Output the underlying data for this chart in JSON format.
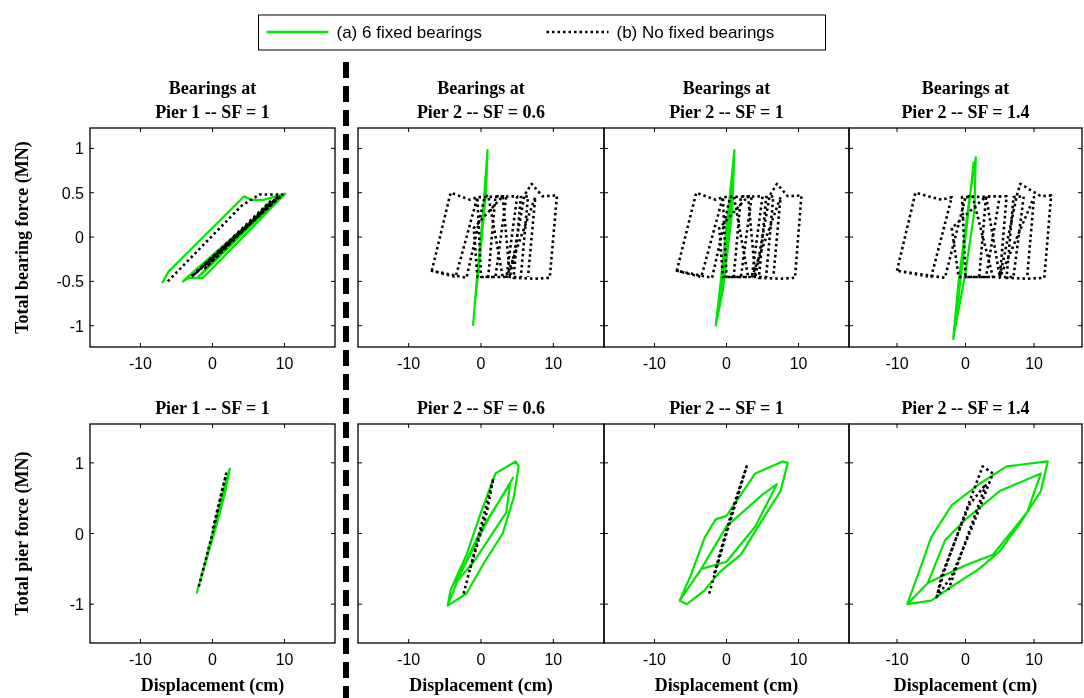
{
  "chart_data": [
    {
      "type": "line",
      "title": "Bearings at\nPier 1 -- SF = 1",
      "ylabel": "Total bearing force (MN)",
      "xlim": [
        -17,
        17
      ],
      "xticks": [
        -10,
        0,
        10
      ],
      "ylim": [
        -1.24,
        1.23
      ],
      "yticks": [
        -1,
        -0.5,
        0,
        0.5,
        1
      ],
      "grid": false,
      "legend": "top",
      "series": [
        {
          "name": "(a) 6 fixed bearings",
          "color": "#00e600",
          "line_style": "solid",
          "x": [
            -7,
            -6.1,
            4.4,
            5.3,
            7.1,
            10.1,
            -1.3,
            -3.2,
            -4.1,
            -2.5,
            9.5,
            0,
            -2,
            8,
            -1.5
          ],
          "values": [
            -0.52,
            -0.39,
            0.46,
            0.42,
            0.42,
            0.49,
            -0.46,
            -0.46,
            -0.5,
            -0.38,
            0.47,
            -0.3,
            -0.45,
            0.4,
            -0.42
          ]
        },
        {
          "name": "(b) No fixed bearings",
          "color": "#000000",
          "line_style": "dotted",
          "x": [
            -6.2,
            4,
            6.5,
            9.7,
            -2.2,
            -3,
            9,
            -1,
            8,
            -2.5,
            9.6
          ],
          "values": [
            -0.5,
            0.35,
            0.48,
            0.48,
            -0.4,
            -0.45,
            0.45,
            -0.35,
            0.4,
            -0.42,
            0.47
          ]
        }
      ]
    },
    {
      "type": "line",
      "title": "Bearings at\nPier 2 -- SF = 0.6",
      "xlim": [
        -17,
        17
      ],
      "xticks": [
        -10,
        0,
        10
      ],
      "ylim": [
        -1.24,
        1.23
      ],
      "yticks": [
        -1,
        -0.5,
        0,
        0.5,
        1
      ],
      "grid": false,
      "tick_labels": "x",
      "series": [
        {
          "color": "#00e600",
          "line_style": "solid",
          "x": [
            -1.1,
            -0.6,
            0.2,
            0.9,
            0.7,
            0,
            -0.9
          ],
          "values": [
            -1.0,
            -0.5,
            0.2,
            0.98,
            0.5,
            -0.1,
            -0.8
          ]
        },
        {
          "color": "#000000",
          "line_style": "dotted",
          "x": [
            -6.8,
            -4.2,
            -1.5,
            -0.5,
            -3.5,
            -6.8,
            -2,
            0.5,
            1,
            3,
            -0.5,
            -1,
            3,
            4,
            6,
            7,
            8.5,
            10.5,
            9.5,
            7.5,
            4.5,
            5.5,
            6.5,
            5.5,
            1,
            2,
            3.5,
            2,
            0,
            -0.5,
            5,
            3.5,
            7.5,
            6.5
          ],
          "values": [
            -0.38,
            0.5,
            0.42,
            0.45,
            -0.45,
            -0.38,
            -0.46,
            0.45,
            0.47,
            -0.45,
            -0.45,
            0.1,
            0.46,
            -0.45,
            0.47,
            0.6,
            0.46,
            0.47,
            -0.46,
            -0.47,
            -0.46,
            0.45,
            0.46,
            -0.45,
            -0.45,
            0.46,
            0.46,
            -0.45,
            -0.45,
            0.45,
            0.46,
            -0.46,
            0.45,
            -0.45
          ]
        }
      ]
    },
    {
      "type": "line",
      "title": "Bearings at\nPier 2 -- SF = 1",
      "xlim": [
        -17,
        17
      ],
      "xticks": [
        -10,
        0,
        10
      ],
      "ylim": [
        -1.24,
        1.23
      ],
      "yticks": [
        -1,
        -0.5,
        0,
        0.5,
        1
      ],
      "grid": false,
      "tick_labels": "x",
      "series": [
        {
          "color": "#00e600",
          "line_style": "solid",
          "x": [
            -1.5,
            -0.8,
            0.5,
            1.1,
            0.8,
            -0.5,
            -1.5,
            -0.9,
            0.4,
            1.0
          ],
          "values": [
            -1.0,
            -0.5,
            0.5,
            0.98,
            0.3,
            -0.6,
            -1.0,
            -0.7,
            0.2,
            0.9
          ]
        },
        {
          "color": "#000000",
          "line_style": "dotted",
          "x": [
            -6.9,
            -4.2,
            -1.5,
            -0.5,
            -3.5,
            -6.9,
            -2,
            0.5,
            1,
            3,
            -0.5,
            -1,
            3,
            4,
            6,
            7,
            8.5,
            10.4,
            9.5,
            7.5,
            4.5,
            5.5,
            6.5,
            5.5,
            1,
            2,
            3.5,
            2,
            0,
            -0.5,
            5,
            3.5,
            7.5,
            6.5
          ],
          "values": [
            -0.38,
            0.5,
            0.42,
            0.45,
            -0.45,
            -0.38,
            -0.46,
            0.45,
            0.47,
            -0.45,
            -0.45,
            0.1,
            0.46,
            -0.45,
            0.47,
            0.6,
            0.46,
            0.47,
            -0.46,
            -0.47,
            -0.46,
            0.45,
            0.46,
            -0.45,
            -0.45,
            0.46,
            0.46,
            -0.45,
            -0.45,
            0.45,
            0.46,
            -0.46,
            0.45,
            -0.45
          ]
        }
      ]
    },
    {
      "type": "line",
      "title": "Bearings at\nPier 2 -- SF = 1.4",
      "xlim": [
        -17,
        17
      ],
      "xticks": [
        -10,
        0,
        10
      ],
      "ylim": [
        -1.24,
        1.23
      ],
      "yticks": [
        -1,
        -0.5,
        0,
        0.5,
        1
      ],
      "grid": false,
      "tick_labels": "x",
      "series": [
        {
          "color": "#00e600",
          "line_style": "solid",
          "x": [
            -1.8,
            -1,
            0.5,
            1.5,
            1.3,
            0,
            -1.8,
            -1.2,
            0.3,
            1.2
          ],
          "values": [
            -1.15,
            -0.5,
            0.4,
            0.9,
            0.3,
            -0.4,
            -1.15,
            -0.8,
            0.2,
            0.85
          ]
        },
        {
          "color": "#000000",
          "line_style": "dotted",
          "x": [
            -10,
            -7.3,
            -3.5,
            -2,
            -5,
            -10,
            -3,
            0,
            1,
            4,
            -1,
            -2,
            3,
            5,
            7.5,
            8,
            11,
            12.5,
            11.5,
            9,
            6,
            7,
            8.5,
            7,
            2,
            3,
            5,
            3,
            0,
            -0.5,
            6,
            5,
            10,
            9
          ],
          "values": [
            -0.38,
            0.5,
            0.42,
            0.45,
            -0.45,
            -0.38,
            -0.46,
            0.45,
            0.47,
            -0.45,
            -0.45,
            0.1,
            0.46,
            -0.45,
            0.47,
            0.6,
            0.46,
            0.47,
            -0.46,
            -0.47,
            -0.46,
            0.45,
            0.46,
            -0.45,
            -0.45,
            0.46,
            0.46,
            -0.45,
            -0.45,
            0.45,
            0.46,
            -0.46,
            0.45,
            -0.45
          ]
        }
      ]
    },
    {
      "type": "line",
      "title": "Pier 1 -- SF = 1",
      "xlabel": "Displacement (cm)",
      "ylabel": "Total pier force (MN)",
      "xlim": [
        -17,
        17
      ],
      "xticks": [
        -10,
        0,
        10
      ],
      "ylim": [
        -1.55,
        1.55
      ],
      "yticks": [
        -1,
        0,
        1
      ],
      "grid": false,
      "series": [
        {
          "color": "#00e600",
          "line_style": "solid",
          "x": [
            -2.2,
            -1,
            0,
            1.5,
            2.4,
            1.8,
            0.5,
            -1.5
          ],
          "values": [
            -0.85,
            -0.4,
            0,
            0.6,
            0.92,
            0.6,
            0.1,
            -0.6
          ]
        },
        {
          "color": "#000000",
          "line_style": "dotted",
          "x": [
            -1.9,
            0,
            1.9,
            0
          ],
          "values": [
            -0.75,
            0,
            0.85,
            0.05
          ]
        }
      ]
    },
    {
      "type": "line",
      "title": "Pier 2 -- SF = 0.6",
      "xlabel": "Displacement (cm)",
      "xlim": [
        -17,
        17
      ],
      "xticks": [
        -10,
        0,
        10
      ],
      "ylim": [
        -1.55,
        1.55
      ],
      "yticks": [
        -1,
        0,
        1
      ],
      "grid": false,
      "tick_labels": "x",
      "series": [
        {
          "color": "#00e600",
          "line_style": "solid",
          "x": [
            -4.6,
            -4.2,
            -2,
            0,
            2,
            4.8,
            5.2,
            4.5,
            3,
            0.5,
            -2,
            -4.6,
            -3,
            0,
            4,
            3.5,
            -1,
            -3.5,
            1,
            4.5
          ],
          "values": [
            -1.02,
            -0.8,
            -0.3,
            0.3,
            0.85,
            1.02,
            0.95,
            0.5,
            0,
            -0.4,
            -0.85,
            -1.02,
            -0.6,
            0.05,
            0.7,
            0.3,
            -0.4,
            -0.7,
            0.2,
            0.8
          ]
        },
        {
          "color": "#000000",
          "line_style": "dotted",
          "x": [
            -2.4,
            -1,
            0.5,
            1.7,
            0.8,
            -1.5
          ],
          "values": [
            -0.85,
            -0.3,
            0.3,
            0.78,
            0.3,
            -0.5
          ]
        }
      ]
    },
    {
      "type": "line",
      "title": "Pier 2 -- SF = 1",
      "xlabel": "Displacement (cm)",
      "xlim": [
        -17,
        17
      ],
      "xticks": [
        -10,
        0,
        10
      ],
      "ylim": [
        -1.55,
        1.55
      ],
      "yticks": [
        -1,
        0,
        1
      ],
      "grid": false,
      "tick_labels": "x",
      "series": [
        {
          "color": "#00e600",
          "line_style": "solid",
          "x": [
            -6.5,
            -5,
            -3,
            -1.5,
            0,
            2,
            4,
            7.8,
            8.5,
            7.5,
            5,
            2,
            -1,
            -3,
            -5.5,
            -6.5,
            -3.5,
            0,
            5,
            7,
            4,
            0,
            -3.5
          ],
          "values": [
            -0.95,
            -0.6,
            -0.05,
            0.2,
            0.25,
            0.55,
            0.85,
            1.02,
            1.0,
            0.6,
            0.2,
            -0.3,
            -0.55,
            -0.8,
            -1.0,
            -0.95,
            -0.5,
            0.1,
            0.55,
            0.7,
            0.1,
            -0.4,
            -0.5
          ]
        },
        {
          "color": "#000000",
          "line_style": "dotted",
          "x": [
            -2.4,
            0,
            2.8,
            1,
            -1.8
          ],
          "values": [
            -0.85,
            0,
            0.95,
            0.4,
            -0.6
          ]
        }
      ]
    },
    {
      "type": "line",
      "title": "Pier 2 -- SF = 1.4",
      "xlabel": "Displacement (cm)",
      "xlim": [
        -17,
        17
      ],
      "xticks": [
        -10,
        0,
        10
      ],
      "ylim": [
        -1.55,
        1.55
      ],
      "yticks": [
        -1,
        0,
        1
      ],
      "grid": false,
      "tick_labels": "x",
      "series": [
        {
          "color": "#00e600",
          "line_style": "solid",
          "x": [
            -8.5,
            -7,
            -5,
            -2,
            2,
            6,
            12,
            11,
            8,
            5,
            2,
            -2,
            -5,
            -8.5,
            -5.5,
            -3,
            0,
            5,
            11,
            9,
            4,
            0,
            -5.5
          ],
          "values": [
            -1.0,
            -0.6,
            -0.05,
            0.4,
            0.7,
            0.95,
            1.02,
            0.6,
            0.15,
            -0.25,
            -0.5,
            -0.75,
            -0.95,
            -1.0,
            -0.7,
            -0.1,
            0.2,
            0.6,
            0.85,
            0.3,
            -0.3,
            -0.45,
            -0.7
          ]
        },
        {
          "color": "#000000",
          "line_style": "dotted",
          "x": [
            -4.2,
            -3,
            0,
            2.5,
            4,
            1,
            -2,
            -4.2,
            -3.5,
            0.5,
            3,
            -2.5
          ],
          "values": [
            -0.9,
            -0.5,
            0.3,
            0.95,
            0.85,
            0.1,
            -0.6,
            -0.9,
            -0.6,
            0.4,
            0.7,
            -0.8
          ]
        }
      ]
    }
  ]
}
